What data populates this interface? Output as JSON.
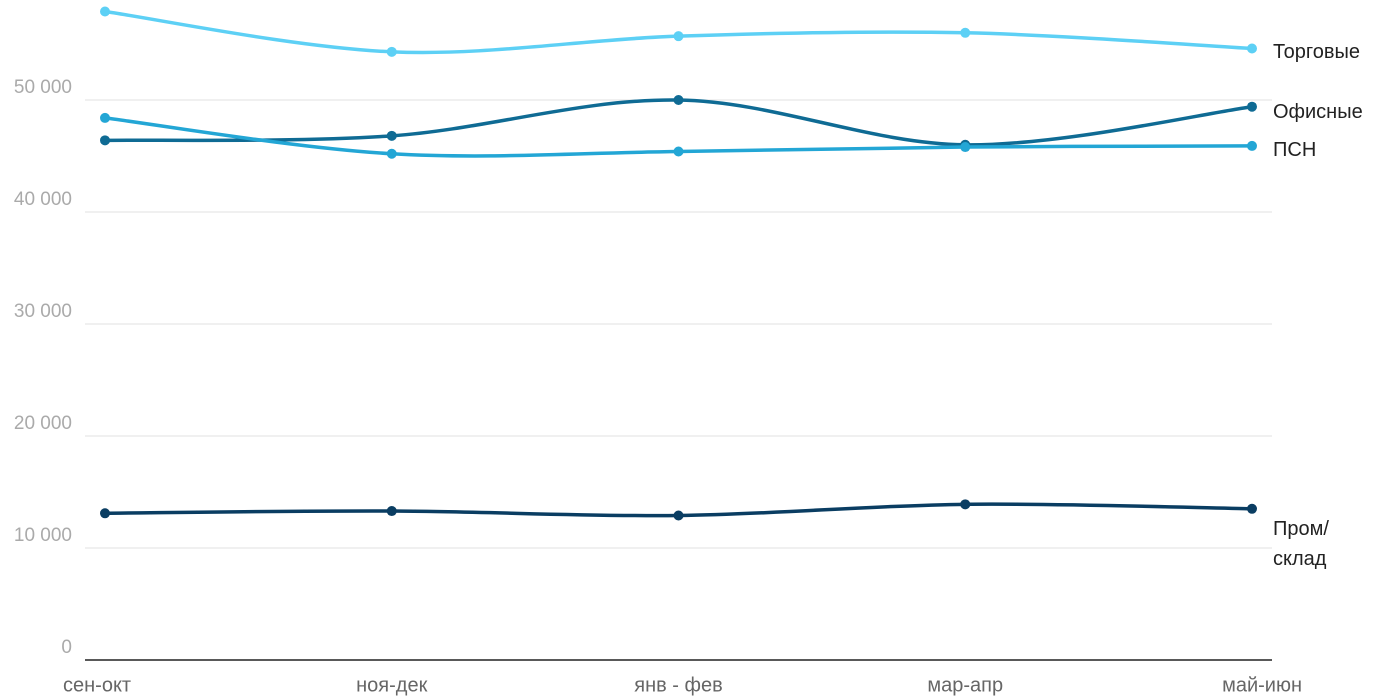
{
  "chart_data": {
    "type": "line",
    "categories": [
      "сен-окт",
      "ноя-дек",
      "янв - фев",
      "мар-апр",
      "май-июн"
    ],
    "series": [
      {
        "name": "Торговые",
        "color": "#5dd0f5",
        "values": [
          57900,
          54300,
          55700,
          56000,
          54600
        ]
      },
      {
        "name": "Офисные",
        "color": "#0f6b94",
        "values": [
          46400,
          46800,
          50000,
          46000,
          49400
        ]
      },
      {
        "name": "ПСН",
        "color": "#23a6d5",
        "values": [
          48400,
          45200,
          45400,
          45800,
          45900
        ]
      },
      {
        "name": "Пром/\nсклад",
        "color": "#0a3d62",
        "values": [
          13100,
          13300,
          12900,
          13900,
          13500
        ]
      }
    ],
    "ylim": [
      0,
      58000
    ],
    "yticks": [
      0,
      {
        "value": 10000,
        "label": "10 000"
      },
      {
        "value": 20000,
        "label": "20 000"
      },
      {
        "value": 30000,
        "label": "30 000"
      },
      {
        "value": 40000,
        "label": "40 000"
      },
      {
        "value": 50000,
        "label": "50 000"
      }
    ],
    "grid": true
  }
}
